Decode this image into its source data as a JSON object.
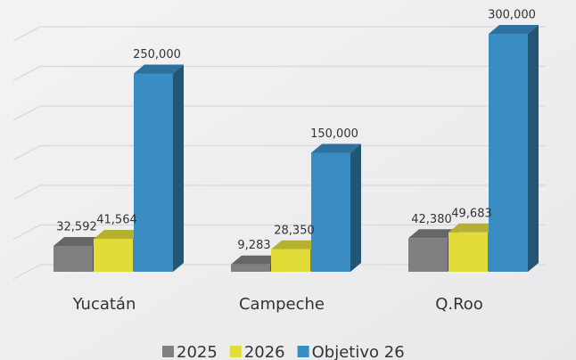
{
  "chart_data": {
    "type": "bar3d",
    "categories": [
      "Yucatán",
      "Campeche",
      "Q.Roo"
    ],
    "series": [
      {
        "name": "2025",
        "color": "#808080",
        "values": [
          32592,
          9283,
          42380
        ],
        "value_labels": [
          "32,592",
          "9,283",
          "42,380"
        ]
      },
      {
        "name": "2026",
        "color": "#e2dc38",
        "values": [
          41564,
          28350,
          49683
        ],
        "value_labels": [
          "41,564",
          "28,350",
          "49,683"
        ]
      },
      {
        "name": "Objetivo 26",
        "color": "#3a8dc3",
        "values": [
          250000,
          150000,
          300000
        ],
        "value_labels": [
          "250,000",
          "150,000",
          "300,000"
        ]
      }
    ],
    "ylim": [
      0,
      300000
    ],
    "yticks": [
      0,
      50000,
      100000,
      150000,
      200000,
      250000,
      300000
    ],
    "grid": true,
    "legend": "bottom"
  }
}
